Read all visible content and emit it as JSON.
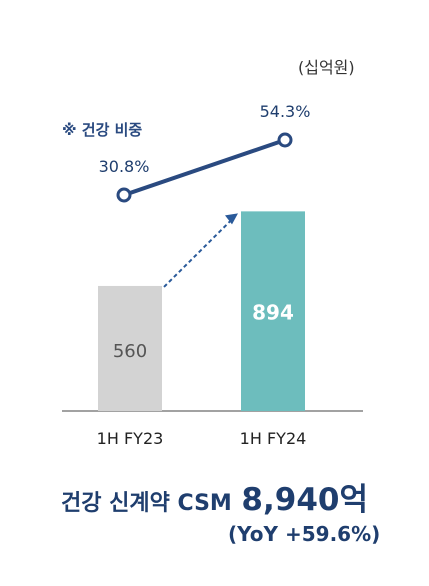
{
  "unit_label": "(십억원)",
  "chart_data": {
    "type": "bar",
    "categories": [
      "1H FY23",
      "1H FY24"
    ],
    "values": [
      560,
      894
    ],
    "bar_colors": [
      "#d3d3d3",
      "#6dbdbd"
    ],
    "bar_label_colors": [
      "#555555",
      "#ffffff"
    ],
    "line_series": {
      "name": "※ 건강 비중",
      "values": [
        30.8,
        54.3
      ],
      "labels": [
        "30.8%",
        "54.3%"
      ],
      "color": "#2a4a80"
    },
    "arrow_color": "#2a5a9a",
    "grid": false,
    "legend": "top-left"
  },
  "summary": {
    "label": "건강 신계약 CSM",
    "value": "8,940억",
    "yoy": "(YoY +59.6%)"
  }
}
